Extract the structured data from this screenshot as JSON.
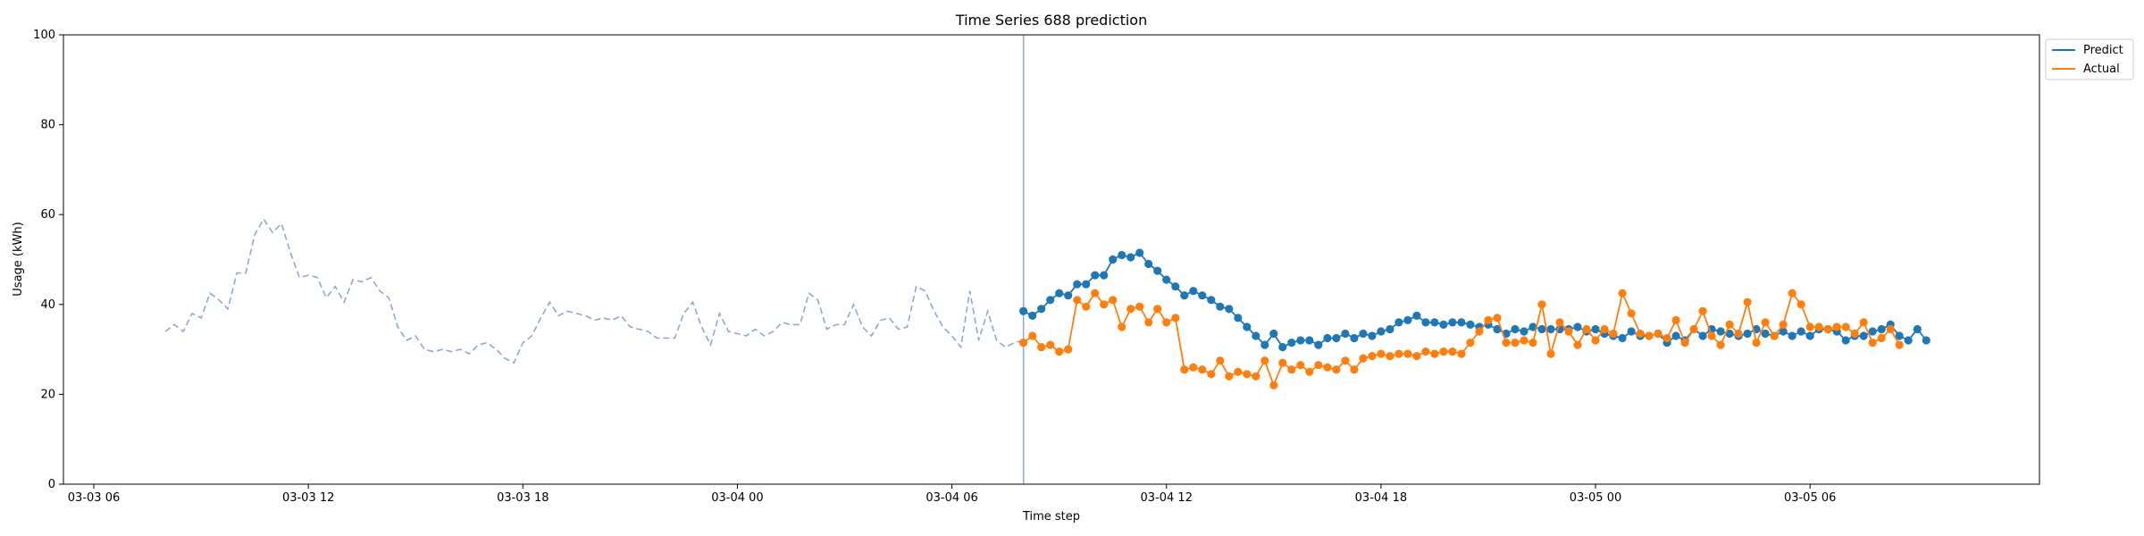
{
  "chart_data": {
    "type": "line",
    "title": "Time Series 688 prediction",
    "xlabel": "Time step",
    "ylabel": "Usage (kWh)",
    "ylim": [
      0,
      100
    ],
    "yticks": [
      0,
      20,
      40,
      60,
      80,
      100
    ],
    "xlim": [
      "2024-03-03 05:09",
      "2024-03-05 12:25"
    ],
    "xticks": [
      {
        "t": "2024-03-03 06:00",
        "label": "03-03 06"
      },
      {
        "t": "2024-03-03 12:00",
        "label": "03-03 12"
      },
      {
        "t": "2024-03-03 18:00",
        "label": "03-03 18"
      },
      {
        "t": "2024-03-04 00:00",
        "label": "03-04 00"
      },
      {
        "t": "2024-03-04 06:00",
        "label": "03-04 06"
      },
      {
        "t": "2024-03-04 12:00",
        "label": "03-04 12"
      },
      {
        "t": "2024-03-04 18:00",
        "label": "03-04 18"
      },
      {
        "t": "2024-03-05 00:00",
        "label": "03-05 00"
      },
      {
        "t": "2024-03-05 06:00",
        "label": "03-05 06"
      }
    ],
    "vline": "2024-03-04 08:00",
    "grid": false,
    "legend_position": "upper-right-outside",
    "series": [
      {
        "name": "",
        "style": "dashed",
        "color": "#8fa8cc",
        "start": "2024-03-03 08:00",
        "step_minutes": 15,
        "values": [
          34,
          35.5,
          34,
          38,
          37,
          42.5,
          41,
          39,
          47,
          47,
          55.5,
          59,
          56,
          58,
          51.5,
          46,
          46.5,
          46,
          41.5,
          44,
          40.5,
          45.5,
          45,
          46,
          43,
          41.5,
          35,
          32,
          33,
          30,
          29.5,
          30,
          29.5,
          30,
          29,
          31,
          31.5,
          30,
          28,
          27,
          31.5,
          33,
          37,
          40.5,
          37.5,
          38.5,
          38,
          37.5,
          36.5,
          37,
          36.5,
          37.5,
          35,
          34.5,
          34,
          32.5,
          32.5,
          32.5,
          38,
          40.5,
          35,
          31,
          38,
          34,
          33.5,
          33,
          34.5,
          33,
          34,
          36,
          35.5,
          35.5,
          42.5,
          41,
          34.5,
          35.5,
          35.5,
          40,
          35,
          33,
          36.5,
          37,
          34.5,
          35,
          44,
          43,
          38.5,
          35,
          33,
          30.5,
          43,
          32,
          38.5,
          32,
          30.5,
          31.5,
          32
        ]
      },
      {
        "name": "Predict",
        "style": "solid-markers",
        "color": "#1f77b4",
        "start": "2024-03-04 08:00",
        "step_minutes": 15,
        "values": [
          38.5,
          37.5,
          39,
          41,
          42.5,
          42,
          44.5,
          44.5,
          46.5,
          46.5,
          50,
          51,
          50.5,
          51.5,
          49,
          47.5,
          45.5,
          44,
          42,
          43,
          42,
          41,
          39.5,
          39,
          37,
          35,
          33,
          31,
          33.5,
          30.5,
          31.5,
          32,
          32,
          31,
          32.5,
          32.5,
          33.5,
          32.5,
          33.5,
          33,
          34,
          34.5,
          36,
          36.5,
          37.5,
          36,
          36,
          35.5,
          36,
          36,
          35.5,
          35,
          35.5,
          34.5,
          33.5,
          34.5,
          34,
          35,
          34.5,
          34.5,
          34.5,
          34.5,
          35,
          34,
          34.5,
          33.5,
          33,
          32.5,
          34,
          33,
          33,
          33.5,
          31.5,
          33,
          32,
          34.5,
          33,
          34.5,
          34,
          33.5,
          33,
          33.5,
          34.5,
          33.5,
          33,
          34,
          33,
          34,
          33,
          34.5,
          34.5,
          34,
          32,
          33,
          33,
          34,
          34.5,
          35.5,
          33,
          32,
          34.5,
          32
        ]
      },
      {
        "name": "Actual",
        "style": "solid-markers",
        "color": "#ff7f0e",
        "start": "2024-03-04 08:00",
        "step_minutes": 15,
        "values": [
          31.5,
          33,
          30.5,
          31,
          29.5,
          30,
          41,
          39.5,
          42.5,
          40,
          41,
          35,
          39,
          39.5,
          36,
          39,
          36,
          37,
          25.5,
          26,
          25.5,
          24.5,
          27.5,
          24,
          25,
          24.5,
          24,
          27.5,
          22,
          27,
          25.5,
          26.5,
          25,
          26.5,
          26,
          25.5,
          27.5,
          25.5,
          28,
          28.5,
          29,
          28.5,
          29,
          29,
          28.5,
          29.5,
          29,
          29.5,
          29.5,
          29,
          31.5,
          34,
          36.5,
          37,
          31.5,
          31.5,
          32,
          31.5,
          40,
          29,
          36,
          34,
          31,
          34.5,
          32,
          34.5,
          33.5,
          42.5,
          38,
          33.5,
          33,
          33.5,
          32.5,
          36.5,
          31.5,
          34.5,
          38.5,
          33,
          31,
          35.5,
          33.5,
          40.5,
          31.5,
          36,
          33,
          35.5,
          42.5,
          40,
          35,
          35,
          34.5,
          35,
          35,
          33.5,
          36,
          31.5,
          32.5,
          34.5,
          31
        ]
      }
    ]
  }
}
